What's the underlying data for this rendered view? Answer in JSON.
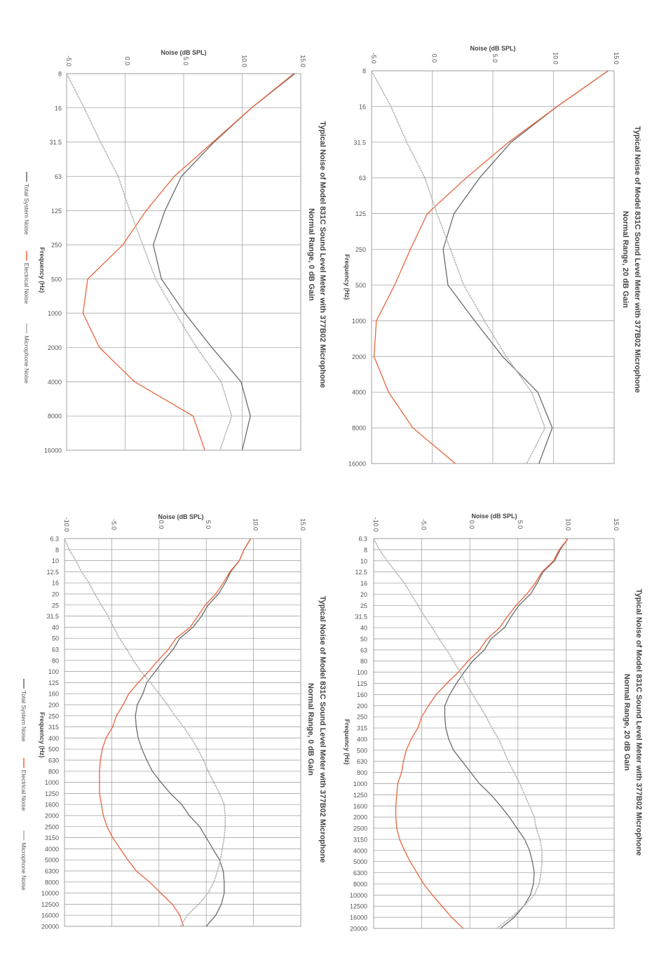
{
  "colors": {
    "total": "#6b6b6b",
    "electrical": "#e8643c",
    "electrical_upper": "#5b9bd5",
    "microphone": "#b0b0b0",
    "grid": "#9a9a9a",
    "axis_text": "#555555"
  },
  "chart_data": [
    {
      "id": "top-right",
      "type": "line",
      "title": "Typical Noise of Model 831C Sound Level Meter with 377B02 Microphone",
      "subtitle": "Normal Range, 20 dB Gain",
      "xlabel": "Frequency (Hz)",
      "ylabel": "Noise (dB SPL)",
      "x_ticks": [
        "8",
        "16",
        "31.5",
        "63",
        "125",
        "250",
        "500",
        "1000",
        "2000",
        "4000",
        "8000",
        "16000"
      ],
      "y_ticks": [
        "-5.0",
        "0.0",
        "5.0",
        "10.0",
        "15.0"
      ],
      "ylim": [
        -5,
        15
      ],
      "legend": [
        "Total System Noise",
        "Electrical Noise",
        "Microphone Noise"
      ],
      "series": [
        {
          "name": "Total System Noise",
          "values": [
            14.5,
            10.3,
            6.5,
            3.9,
            1.8,
            0.9,
            1.3,
            3.5,
            5.8,
            8.7,
            9.9,
            8.8
          ]
        },
        {
          "name": "Electrical Noise",
          "values": [
            14.5,
            10.3,
            6.3,
            2.8,
            -0.4,
            -1.8,
            -3.1,
            -4.6,
            -4.8,
            -3.6,
            -1.6,
            1.9
          ]
        },
        {
          "name": "Microphone Noise",
          "values": [
            -5.0,
            -3.4,
            -2.1,
            -0.6,
            0.4,
            1.5,
            2.6,
            4.3,
            6.1,
            8.2,
            9.3,
            7.8
          ]
        }
      ]
    },
    {
      "id": "top-left",
      "type": "line",
      "title": "Typical Noise of Model 831C Sound Level Meter with 377B02 Microphone",
      "subtitle": "Normal Range, 0 dB Gain",
      "xlabel": "Frequency (Hz)",
      "ylabel": "Noise (dB SPL)",
      "x_ticks": [
        "8",
        "16",
        "31.5",
        "63",
        "125",
        "250",
        "500",
        "1000",
        "2000",
        "4000",
        "8000",
        "16000"
      ],
      "y_ticks": [
        "-5.0",
        "0.0",
        "5.0",
        "10.0",
        "15.0"
      ],
      "ylim": [
        -5,
        15
      ],
      "legend": [
        "Total System Noise",
        "Electrical Noise",
        "Microphone Noise"
      ],
      "series": [
        {
          "name": "Total System Noise",
          "values": [
            14.5,
            10.8,
            7.6,
            4.8,
            3.4,
            2.4,
            3.1,
            5.1,
            7.4,
            9.9,
            10.7,
            10.0
          ]
        },
        {
          "name": "Electrical Noise",
          "values": [
            14.4,
            10.8,
            7.5,
            4.2,
            1.8,
            -0.2,
            -3.2,
            -3.6,
            -2.2,
            0.8,
            5.8,
            6.8
          ]
        },
        {
          "name": "Microphone Noise",
          "values": [
            -5.0,
            -3.5,
            -2.1,
            -0.6,
            0.4,
            1.5,
            2.6,
            4.3,
            6.1,
            8.2,
            9.1,
            8.1
          ]
        }
      ]
    },
    {
      "id": "bottom-right",
      "type": "line",
      "title": "Typical Noise of Model 831C Sound Level Meter with 377B02 Microphone",
      "subtitle": "Normal Range, 20 dB Gain",
      "xlabel": "Frequency (Hz)",
      "ylabel": "Noise (dB SPL)",
      "x_ticks": [
        "6.3",
        "8",
        "10",
        "12.5",
        "16",
        "20",
        "25",
        "31.5",
        "40",
        "50",
        "63",
        "80",
        "100",
        "125",
        "160",
        "200",
        "250",
        "315",
        "400",
        "500",
        "630",
        "800",
        "1000",
        "1250",
        "1600",
        "2000",
        "2500",
        "3150",
        "4000",
        "5000",
        "6300",
        "8000",
        "10000",
        "12500",
        "16000",
        "20000"
      ],
      "y_ticks": [
        "-10.0",
        "-5.0",
        "0.0",
        "5.0",
        "10.0",
        "15.0"
      ],
      "ylim": [
        -10,
        15
      ],
      "legend": [
        "Total System Noise",
        "Electrical Noise",
        "Microphone Noise"
      ],
      "series": [
        {
          "name": "Total System Noise",
          "values": [
            10.2,
            9.4,
            8.8,
            7.6,
            7.0,
            6.3,
            5.1,
            4.3,
            3.6,
            2.2,
            1.5,
            0.3,
            -0.6,
            -1.4,
            -2.1,
            -2.6,
            -2.6,
            -2.5,
            -2.2,
            -1.7,
            -0.8,
            0.1,
            1.0,
            2.2,
            3.2,
            4.1,
            4.9,
            5.7,
            6.2,
            6.5,
            6.7,
            6.6,
            6.3,
            5.6,
            4.6,
            3.2
          ]
        },
        {
          "name": "Electrical Noise",
          "values": [
            10.2,
            9.3,
            8.7,
            7.5,
            6.8,
            5.9,
            4.8,
            3.9,
            3.1,
            1.8,
            1.0,
            -0.2,
            -1.2,
            -2.4,
            -3.5,
            -4.3,
            -5.0,
            -5.4,
            -6.1,
            -6.6,
            -6.9,
            -7.1,
            -7.5,
            -7.6,
            -7.7,
            -7.7,
            -7.6,
            -7.3,
            -6.8,
            -6.2,
            -5.5,
            -4.8,
            -3.9,
            -2.9,
            -1.9,
            -0.7
          ]
        },
        {
          "name": "Microphone Noise",
          "values": [
            -10.0,
            -9.4,
            -8.6,
            -7.7,
            -6.8,
            -6.1,
            -5.4,
            -4.7,
            -3.9,
            -3.2,
            -2.4,
            -1.7,
            -1.0,
            -0.4,
            0.3,
            1.0,
            1.7,
            2.3,
            3.0,
            3.5,
            4.0,
            4.6,
            5.2,
            5.7,
            6.2,
            6.7,
            6.9,
            7.3,
            7.5,
            7.5,
            7.4,
            7.2,
            6.7,
            5.6,
            4.3,
            2.8
          ]
        }
      ]
    },
    {
      "id": "bottom-left",
      "type": "line",
      "title": "Typical Noise of Model 831C Sound Level Meter with 377B02 Microphone",
      "subtitle": "Normal Range, 0 dB Gain",
      "xlabel": "Frequency (Hz)",
      "ylabel": "Noise (dB SPL)",
      "x_ticks": [
        "6.3",
        "8",
        "10",
        "12.5",
        "16",
        "20",
        "25",
        "31.5",
        "40",
        "50",
        "63",
        "80",
        "100",
        "125",
        "160",
        "200",
        "250",
        "315",
        "400",
        "500",
        "630",
        "800",
        "1000",
        "1250",
        "1600",
        "2000",
        "2500",
        "3150",
        "4000",
        "5000",
        "6300",
        "8000",
        "10000",
        "12500",
        "16000",
        "20000"
      ],
      "y_ticks": [
        "-10.0",
        "-5.0",
        "0.0",
        "5.0",
        "10.0",
        "15.0"
      ],
      "ylim": [
        -10,
        15
      ],
      "legend": [
        "Total System Noise",
        "Electrical Noise",
        "Microphone Noise"
      ],
      "series": [
        {
          "name": "Total System Noise",
          "values": [
            9.7,
            9.0,
            8.5,
            7.6,
            7.0,
            6.3,
            5.2,
            4.5,
            3.6,
            2.2,
            1.5,
            0.5,
            -0.4,
            -1.3,
            -1.7,
            -2.3,
            -2.5,
            -2.4,
            -2.2,
            -1.8,
            -1.3,
            -0.7,
            0.2,
            1.2,
            2.4,
            3.2,
            4.3,
            5.0,
            5.7,
            6.4,
            6.8,
            6.9,
            6.9,
            6.6,
            6.0,
            5.0
          ]
        },
        {
          "name": "Electrical Noise",
          "values": [
            9.7,
            9.0,
            8.5,
            7.5,
            6.8,
            6.0,
            4.9,
            4.1,
            3.3,
            1.8,
            1.0,
            -0.1,
            -1.1,
            -2.2,
            -3.2,
            -3.8,
            -4.5,
            -4.9,
            -5.6,
            -6.0,
            -6.2,
            -6.3,
            -6.3,
            -6.3,
            -6.1,
            -5.9,
            -5.5,
            -4.9,
            -4.1,
            -3.3,
            -2.4,
            -1.0,
            0.2,
            1.4,
            2.2,
            2.6
          ]
        },
        {
          "name": "Microphone Noise",
          "values": [
            -10.0,
            -9.5,
            -8.8,
            -8.2,
            -7.4,
            -6.8,
            -6.1,
            -5.4,
            -4.8,
            -4.2,
            -3.4,
            -2.7,
            -1.9,
            -0.9,
            0.0,
            0.9,
            1.7,
            2.6,
            3.4,
            4.1,
            4.7,
            5.2,
            5.8,
            6.4,
            6.9,
            7.0,
            7.0,
            6.9,
            6.7,
            6.5,
            6.2,
            5.8,
            5.2,
            4.2,
            3.0,
            2.3
          ]
        }
      ]
    }
  ]
}
